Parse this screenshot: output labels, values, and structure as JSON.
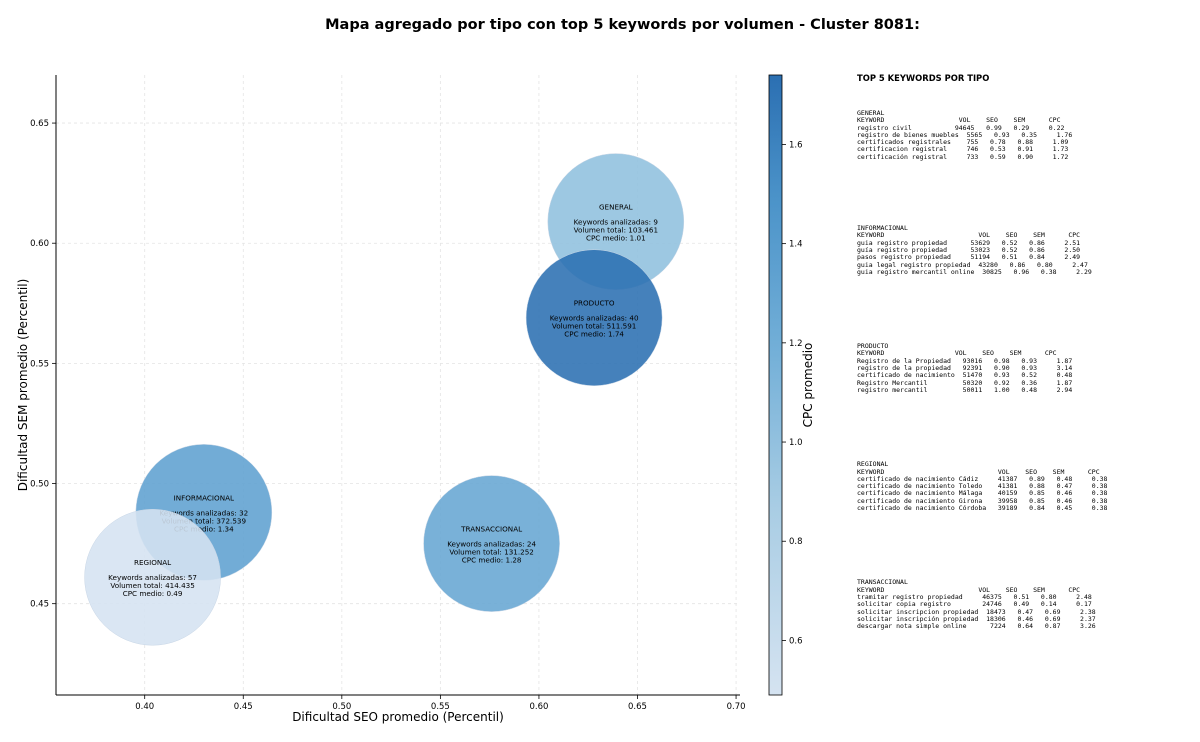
{
  "chart_data": {
    "type": "scatter",
    "title": "Mapa agregado por tipo con top 5 keywords por volumen - Cluster 8081:",
    "xlabel": "Dificultad SEO promedio (Percentil)",
    "ylabel": "Dificultad SEM promedio (Percentil)",
    "colorbar_label": "CPC promedio",
    "xlim": [
      0.355,
      0.702
    ],
    "ylim": [
      0.412,
      0.67
    ],
    "xticks": [
      "0.40",
      "0.45",
      "0.50",
      "0.55",
      "0.60",
      "0.65",
      "0.70"
    ],
    "yticks": [
      "0.45",
      "0.50",
      "0.55",
      "0.60",
      "0.65"
    ],
    "colorbar_range": [
      0.49,
      1.74
    ],
    "colorbar_ticks": [
      "0.6",
      "0.8",
      "1.0",
      "1.2",
      "1.4",
      "1.6"
    ],
    "grid": true,
    "bubble_line_templates": [
      "Keywords analizadas: {n}",
      "Volumen total: {v}",
      "CPC medio: {c}"
    ],
    "points": [
      {
        "name": "INFORMACIONAL",
        "x": 0.43,
        "y": 0.488,
        "keywords": "32",
        "volume": "372.539",
        "cpc": "1.34",
        "cpc_value": 1.34
      },
      {
        "name": "REGIONAL",
        "x": 0.404,
        "y": 0.461,
        "keywords": "57",
        "volume": "414.435",
        "cpc": "0.49",
        "cpc_value": 0.49
      },
      {
        "name": "TRANSACCIONAL",
        "x": 0.576,
        "y": 0.475,
        "keywords": "24",
        "volume": "131.252",
        "cpc": "1.28",
        "cpc_value": 1.28
      },
      {
        "name": "GENERAL",
        "x": 0.639,
        "y": 0.609,
        "keywords": "9",
        "volume": "103.461",
        "cpc": "1.01",
        "cpc_value": 1.01
      },
      {
        "name": "PRODUCTO",
        "x": 0.628,
        "y": 0.569,
        "keywords": "40",
        "volume": "511.591",
        "cpc": "1.74",
        "cpc_value": 1.74
      }
    ]
  },
  "side_panel": {
    "title": "TOP 5 KEYWORDS POR TIPO",
    "blocks": [
      {
        "name": "GENERAL",
        "header": "KEYWORD                   VOL    SEO    SEM      CPC",
        "rows": [
          "registro civil           94645   0.99   0.29     0.22",
          "registro de bienes muebles  5565   0.93   0.35     1.76",
          "certificados registrales    755   0.78   0.88     1.09",
          "certificacion registral     746   0.53   0.91     1.73",
          "certificación registral     733   0.59   0.90     1.72"
        ]
      },
      {
        "name": "INFORMACIONAL",
        "header": "KEYWORD                        VOL    SEO    SEM      CPC",
        "rows": [
          "guia registro propiedad      53629   0.52   0.86     2.51",
          "guía registro propiedad      53023   0.52   0.86     2.50",
          "pasos registro propiedad     51194   0.51   0.84     2.49",
          "guia legal registro propiedad  43280   0.86   0.80     2.47",
          "guia registro mercantil online  30825   0.96   0.38     2.29"
        ]
      },
      {
        "name": "PRODUCTO",
        "header": "KEYWORD                  VOL    SEO    SEM      CPC",
        "rows": [
          "Registro de la Propiedad   93016   0.98   0.93     1.87",
          "registro de la propiedad   92391   0.90   0.93     3.14",
          "certificado de nacimiento  51470   0.93   0.52     0.48",
          "Registro Mercantil         50320   0.92   0.36     1.87",
          "registro mercantil         50011   1.00   0.48     2.94"
        ]
      },
      {
        "name": "REGIONAL",
        "header": "KEYWORD                             VOL    SEO    SEM      CPC",
        "rows": [
          "certificado de nacimiento Cádiz     41387   0.89   0.48     0.38",
          "certificado de nacimiento Toledo    41381   0.88   0.47     0.38",
          "certificado de nacimiento Málaga    40159   0.85   0.46     0.38",
          "certificado de nacimiento Girona    39958   0.85   0.46     0.38",
          "certificado de nacimiento Córdoba   39189   0.84   0.45     0.38"
        ]
      },
      {
        "name": "TRANSACCIONAL",
        "header": "KEYWORD                        VOL    SEO    SEM      CPC",
        "rows": [
          "tramitar registro propiedad     46375   0.51   0.80     2.48",
          "solicitar copia registro        24746   0.49   0.14     0.17",
          "solicitar inscripcion propiedad  18473   0.47   0.69     2.38",
          "solicitar inscripción propiedad  18306   0.46   0.69     2.37",
          "descargar nota simple online      7224   0.64   0.87     3.26"
        ]
      }
    ]
  }
}
